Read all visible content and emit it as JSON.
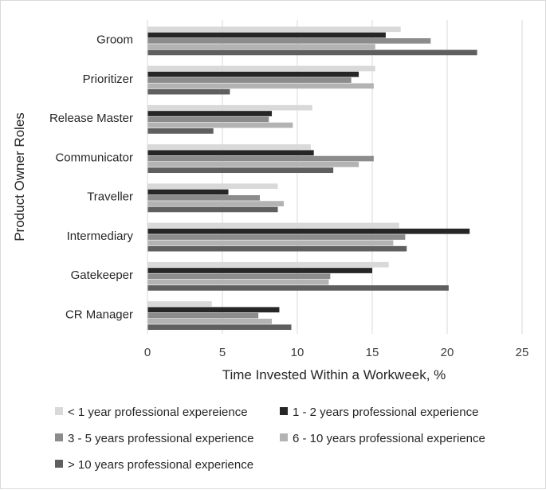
{
  "chart_data": {
    "type": "bar",
    "orientation": "horizontal",
    "categories": [
      "Groom",
      "Prioritizer",
      "Release Master",
      "Communicator",
      "Traveller",
      "Intermediary",
      "Gatekeeper",
      "CR Manager"
    ],
    "series": [
      {
        "name": "< 1 year professional expereience",
        "color": "#d9d9d9",
        "values": [
          16.9,
          15.2,
          11.0,
          10.9,
          8.7,
          16.8,
          16.1,
          4.3
        ]
      },
      {
        "name": "1 - 2 years professional experience",
        "color": "#262626",
        "values": [
          15.9,
          14.1,
          8.3,
          11.1,
          5.4,
          21.5,
          15.0,
          8.8
        ]
      },
      {
        "name": "3 - 5 years professional experience",
        "color": "#8c8c8c",
        "values": [
          18.9,
          13.6,
          8.1,
          15.1,
          7.5,
          17.2,
          12.2,
          7.4
        ]
      },
      {
        "name": "6 - 10 years professional experience",
        "color": "#b3b3b3",
        "values": [
          15.2,
          15.1,
          9.7,
          14.1,
          9.1,
          16.4,
          12.1,
          8.3
        ]
      },
      {
        "name": "> 10 years professional experience",
        "color": "#5f5f5f",
        "values": [
          22.0,
          5.5,
          4.4,
          12.4,
          8.7,
          17.3,
          20.1,
          9.6
        ]
      }
    ],
    "xlabel": "Time Invested Within a Workweek, %",
    "ylabel": "Product Owner Roles",
    "xlim": [
      0,
      25
    ],
    "xticks": [
      "0",
      "5",
      "10",
      "15",
      "20",
      "25"
    ],
    "grid": "vertical",
    "legend_position": "bottom"
  }
}
